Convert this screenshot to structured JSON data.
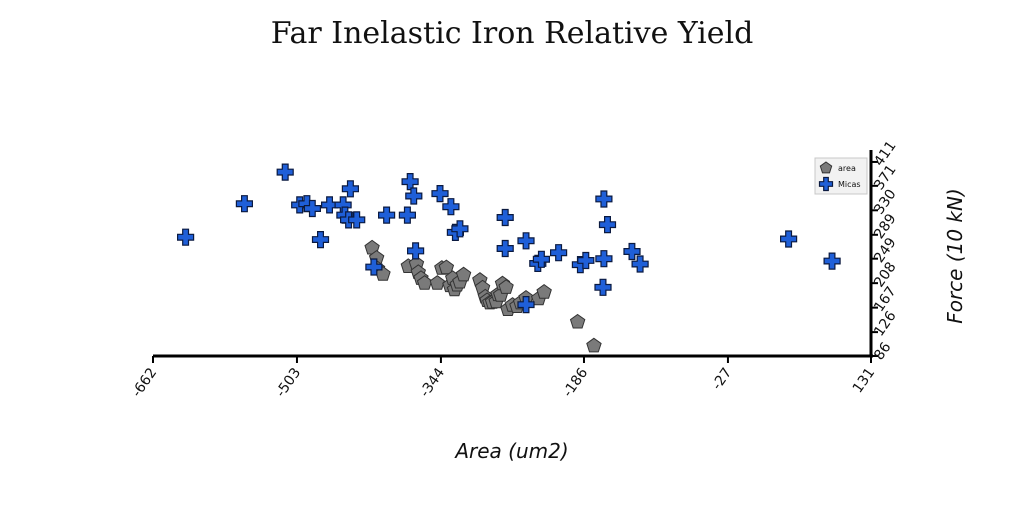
{
  "chart_data": {
    "type": "scatter",
    "title": "Far Inelastic Iron Relative Yield",
    "xlabel": "Area (um2)",
    "ylabel": "Force (10 kN)",
    "xlim": [
      -662,
      131
    ],
    "ylim": [
      86,
      431
    ],
    "x_ticks": [
      -662,
      -503,
      -344,
      -186,
      -27,
      131
    ],
    "x_tick_labels": [
      "-662",
      "-503",
      "-344",
      "-186",
      "-27",
      "131"
    ],
    "y_ticks": [
      86,
      126,
      167,
      208,
      249,
      289,
      330,
      371,
      411
    ],
    "y_tick_labels": [
      "86",
      "126",
      "167",
      "208",
      "249",
      "289",
      "330",
      "371",
      "411"
    ],
    "grid": false,
    "legend_position": "top-right",
    "series": [
      {
        "name": "area",
        "marker": "pentagon",
        "color": "#7a7a7a",
        "points": [
          [
            -420,
            267
          ],
          [
            -415,
            250
          ],
          [
            -414,
            232
          ],
          [
            -408,
            223
          ],
          [
            -380,
            236
          ],
          [
            -371,
            240
          ],
          [
            -369,
            226
          ],
          [
            -366,
            216
          ],
          [
            -362,
            208
          ],
          [
            -348,
            208
          ],
          [
            -343,
            233
          ],
          [
            -338,
            234
          ],
          [
            -334,
            204
          ],
          [
            -331,
            216
          ],
          [
            -329,
            197
          ],
          [
            -326,
            205
          ],
          [
            -323,
            210
          ],
          [
            -319,
            222
          ],
          [
            -301,
            213
          ],
          [
            -298,
            200
          ],
          [
            -295,
            185
          ],
          [
            -293,
            179
          ],
          [
            -290,
            175
          ],
          [
            -287,
            176
          ],
          [
            -283,
            177
          ],
          [
            -281,
            189
          ],
          [
            -278,
            188
          ],
          [
            -276,
            207
          ],
          [
            -272,
            201
          ],
          [
            -270,
            164
          ],
          [
            -265,
            171
          ],
          [
            -260,
            169
          ],
          [
            -256,
            175
          ],
          [
            -250,
            183
          ],
          [
            -236,
            182
          ],
          [
            -230,
            193
          ],
          [
            -193,
            143
          ],
          [
            -175,
            103
          ]
        ]
      },
      {
        "name": "Micas",
        "marker": "plus",
        "color": "#1f5fd8",
        "points": [
          [
            -626,
            285
          ],
          [
            -561,
            341
          ],
          [
            -516,
            394
          ],
          [
            -500,
            339
          ],
          [
            -492,
            341
          ],
          [
            -486,
            333
          ],
          [
            -477,
            281
          ],
          [
            -467,
            339
          ],
          [
            -452,
            339
          ],
          [
            -450,
            322
          ],
          [
            -446,
            314
          ],
          [
            -444,
            366
          ],
          [
            -437,
            314
          ],
          [
            -418,
            235
          ],
          [
            -404,
            322
          ],
          [
            -381,
            322
          ],
          [
            -378,
            378
          ],
          [
            -374,
            354
          ],
          [
            -372,
            262
          ],
          [
            -345,
            358
          ],
          [
            -333,
            336
          ],
          [
            -328,
            293
          ],
          [
            -323,
            299
          ],
          [
            -273,
            318
          ],
          [
            -273,
            266
          ],
          [
            -250,
            279
          ],
          [
            -250,
            172
          ],
          [
            -237,
            241
          ],
          [
            -233,
            248
          ],
          [
            -214,
            259
          ],
          [
            -190,
            239
          ],
          [
            -184,
            246
          ],
          [
            -165,
            201
          ],
          [
            -164,
            249
          ],
          [
            -164,
            349
          ],
          [
            -160,
            306
          ],
          [
            -133,
            261
          ],
          [
            -124,
            240
          ],
          [
            40,
            282
          ],
          [
            88,
            245
          ]
        ]
      }
    ]
  }
}
